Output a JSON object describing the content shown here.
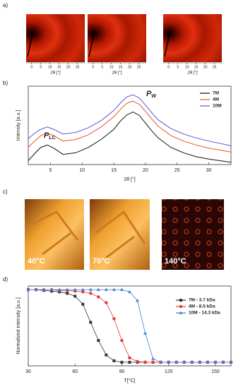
{
  "panel_labels": [
    "a)",
    "b)",
    "c)",
    "d)"
  ],
  "images_a": {
    "xlabel": "2θ [°]",
    "xticks": [
      0,
      5,
      10,
      15,
      20,
      25
    ],
    "xlim": [
      -3,
      29
    ]
  },
  "images_c": {
    "labels": [
      "40°C",
      "70°C",
      "140°C"
    ]
  },
  "chart_data": [
    {
      "type": "line",
      "xlabel": "2θ [°]",
      "ylabel": "Intensity [a.u.]",
      "annotations": [
        {
          "text": "P",
          "sub": "LC"
        },
        {
          "text": "P",
          "sub": "W"
        }
      ],
      "x": [
        1.5,
        2.5,
        3.5,
        4.5,
        5.5,
        7,
        9,
        11,
        13,
        15,
        16,
        17,
        18,
        19,
        20,
        21,
        22,
        24,
        26,
        28,
        30,
        33.5
      ],
      "xlim": [
        1.5,
        33.5
      ],
      "xticks": [
        5,
        10,
        15,
        20,
        25,
        30
      ],
      "ylim": [
        0,
        1
      ],
      "legend": "upper right",
      "series": [
        {
          "name": "7M",
          "color": "#111111",
          "values": [
            0.05,
            0.14,
            0.22,
            0.25,
            0.21,
            0.13,
            0.15,
            0.22,
            0.32,
            0.45,
            0.55,
            0.63,
            0.67,
            0.63,
            0.53,
            0.43,
            0.34,
            0.22,
            0.15,
            0.1,
            0.07,
            0.03
          ]
        },
        {
          "name": "4M",
          "color": "#e8542a",
          "values": [
            0.22,
            0.3,
            0.37,
            0.4,
            0.37,
            0.3,
            0.32,
            0.38,
            0.48,
            0.61,
            0.7,
            0.78,
            0.81,
            0.77,
            0.68,
            0.58,
            0.49,
            0.37,
            0.3,
            0.25,
            0.21,
            0.16
          ]
        },
        {
          "name": "10M",
          "color": "#5a55d8",
          "values": [
            0.33,
            0.4,
            0.45,
            0.48,
            0.45,
            0.39,
            0.41,
            0.47,
            0.56,
            0.69,
            0.78,
            0.86,
            0.89,
            0.85,
            0.76,
            0.66,
            0.57,
            0.46,
            0.39,
            0.34,
            0.3,
            0.24
          ]
        }
      ]
    },
    {
      "type": "line",
      "markers": true,
      "xlabel": "T[°C]",
      "ylabel": "Normalized intensity [a.u.]",
      "x": [
        30,
        35,
        40,
        45,
        50,
        55,
        60,
        65,
        70,
        75,
        80,
        85,
        90,
        95,
        100,
        105,
        110,
        115,
        120,
        125,
        130,
        135,
        140,
        145,
        150,
        155,
        160
      ],
      "xlim": [
        30,
        160
      ],
      "xticks": [
        30,
        60,
        90,
        120,
        150
      ],
      "ylim": [
        -0.05,
        1.05
      ],
      "legend": "upper right",
      "series": [
        {
          "name": "7M - 3.7 kDa",
          "color": "#333333",
          "marker": "square",
          "values": [
            1,
            1,
            0.99,
            0.98,
            0.97,
            0.95,
            0.91,
            0.8,
            0.55,
            0.3,
            0.1,
            0.02,
            0,
            0,
            0,
            0,
            0,
            0,
            0,
            0,
            0,
            0,
            0,
            0,
            0,
            0,
            0
          ]
        },
        {
          "name": "4M - 8.5 kDa",
          "color": "#e53935",
          "marker": "circle",
          "values": [
            1,
            1,
            1,
            1,
            0.99,
            0.99,
            0.98,
            0.97,
            0.95,
            0.9,
            0.82,
            0.6,
            0.3,
            0.06,
            0.01,
            0,
            0,
            0,
            0,
            0,
            0,
            0,
            0,
            0,
            0,
            0,
            0
          ]
        },
        {
          "name": "10M - 14.3 kDa",
          "color": "#3f7fd8",
          "marker": "triangle",
          "values": [
            1,
            1,
            1,
            1,
            1,
            1,
            1,
            1,
            1,
            1,
            1,
            1,
            1,
            0.97,
            0.85,
            0.4,
            0.05,
            0,
            0,
            0,
            0,
            0,
            0,
            0,
            0,
            0,
            0
          ]
        }
      ]
    }
  ]
}
